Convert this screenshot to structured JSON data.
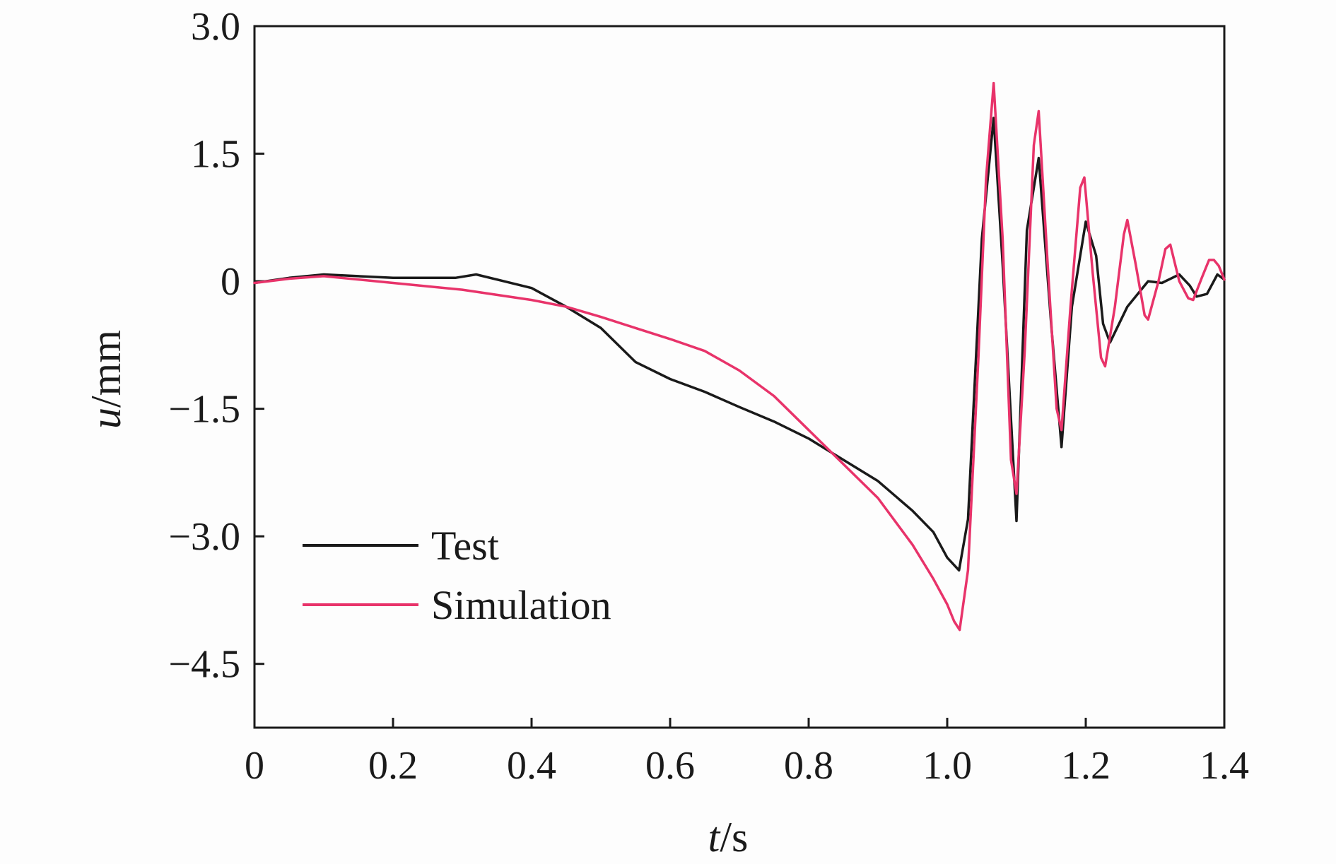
{
  "chart_data": {
    "type": "line",
    "xlabel": "t/s",
    "xlabel_var": "t",
    "xlabel_unit": "/s",
    "ylabel": "u/mm",
    "ylabel_var": "u",
    "ylabel_unit": "/mm",
    "xlim": [
      0,
      1.4
    ],
    "ylim": [
      -5.25,
      3.0
    ],
    "xticks": [
      0,
      0.2,
      0.4,
      0.6,
      0.8,
      1.0,
      1.2,
      1.4
    ],
    "xtick_labels": [
      "0",
      "0.2",
      "0.4",
      "0.6",
      "0.8",
      "1.0",
      "1.2",
      "1.4"
    ],
    "yticks": [
      3.0,
      1.5,
      0,
      -1.5,
      -3.0,
      -4.5
    ],
    "ytick_labels": [
      "3.0",
      "1.5",
      "0",
      "−1.5",
      "−3.0",
      "−4.5"
    ],
    "grid": false,
    "legend_position": "bottom-left",
    "series": [
      {
        "name": "Test",
        "color": "#1a1a1a",
        "x": [
          0,
          0.05,
          0.1,
          0.15,
          0.2,
          0.25,
          0.29,
          0.32,
          0.36,
          0.4,
          0.45,
          0.5,
          0.55,
          0.6,
          0.65,
          0.7,
          0.75,
          0.8,
          0.85,
          0.9,
          0.95,
          0.98,
          1.0,
          1.017,
          1.03,
          1.05,
          1.067,
          1.08,
          1.1,
          1.115,
          1.132,
          1.15,
          1.165,
          1.18,
          1.2,
          1.215,
          1.225,
          1.235,
          1.26,
          1.28,
          1.29,
          1.31,
          1.335,
          1.35,
          1.36,
          1.375,
          1.39,
          1.4
        ],
        "y": [
          -0.02,
          0.04,
          0.08,
          0.06,
          0.04,
          0.04,
          0.04,
          0.08,
          0.0,
          -0.08,
          -0.3,
          -0.55,
          -0.95,
          -1.15,
          -1.3,
          -1.48,
          -1.65,
          -1.85,
          -2.1,
          -2.35,
          -2.7,
          -2.95,
          -3.25,
          -3.4,
          -2.8,
          0.5,
          1.92,
          0.2,
          -2.82,
          0.6,
          1.45,
          -0.5,
          -1.95,
          -0.3,
          0.7,
          0.3,
          -0.5,
          -0.72,
          -0.3,
          -0.1,
          0.0,
          -0.02,
          0.08,
          -0.05,
          -0.18,
          -0.15,
          0.08,
          0.02
        ]
      },
      {
        "name": "Simulation",
        "color": "#e8336a",
        "x": [
          0,
          0.05,
          0.1,
          0.2,
          0.3,
          0.4,
          0.45,
          0.5,
          0.55,
          0.6,
          0.65,
          0.7,
          0.75,
          0.8,
          0.85,
          0.9,
          0.95,
          0.98,
          1.0,
          1.01,
          1.018,
          1.03,
          1.045,
          1.056,
          1.067,
          1.08,
          1.092,
          1.1,
          1.112,
          1.125,
          1.132,
          1.145,
          1.158,
          1.165,
          1.178,
          1.192,
          1.198,
          1.21,
          1.222,
          1.228,
          1.242,
          1.255,
          1.26,
          1.272,
          1.285,
          1.29,
          1.305,
          1.315,
          1.322,
          1.335,
          1.348,
          1.355,
          1.368,
          1.378,
          1.385,
          1.392,
          1.4
        ],
        "y": [
          -0.02,
          0.03,
          0.06,
          -0.02,
          -0.1,
          -0.22,
          -0.3,
          -0.42,
          -0.55,
          -0.68,
          -0.82,
          -1.05,
          -1.35,
          -1.75,
          -2.15,
          -2.55,
          -3.1,
          -3.5,
          -3.8,
          -4.0,
          -4.1,
          -3.4,
          -0.9,
          1.2,
          2.33,
          0.5,
          -2.1,
          -2.5,
          -0.8,
          1.6,
          2.0,
          0.2,
          -1.5,
          -1.75,
          -0.3,
          1.1,
          1.22,
          0.1,
          -0.9,
          -1.0,
          -0.3,
          0.55,
          0.72,
          0.2,
          -0.4,
          -0.45,
          0.0,
          0.38,
          0.43,
          0.0,
          -0.2,
          -0.22,
          0.05,
          0.25,
          0.25,
          0.18,
          0.02
        ]
      }
    ]
  }
}
